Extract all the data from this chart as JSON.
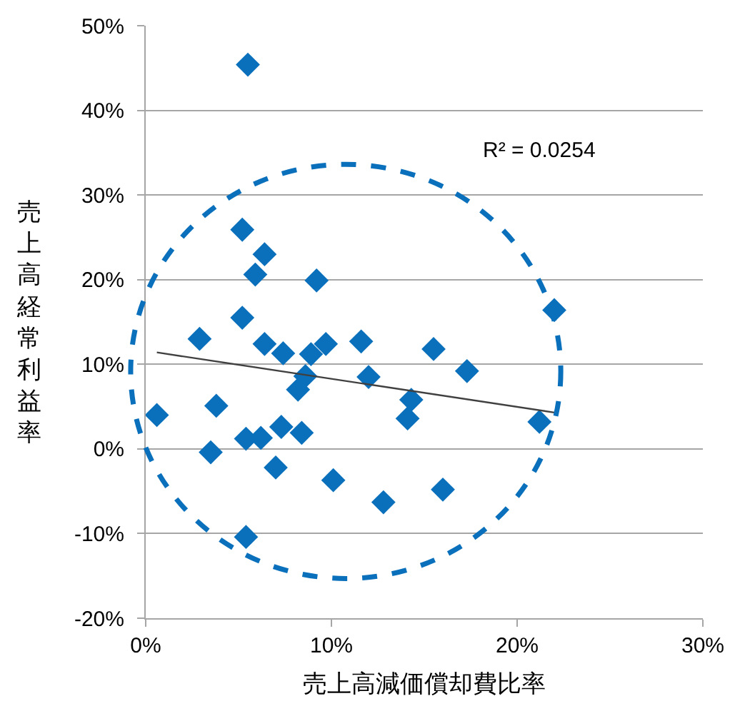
{
  "chart_data": {
    "type": "scatter",
    "xlabel": "売上高減価償却費比率",
    "ylabel": "売上高経常利益率",
    "annotations": [
      "R² = 0.0254"
    ],
    "series": [
      {
        "marker": "diamond",
        "color": "#0a70bc",
        "x": [
          5.5,
          5.2,
          6.4,
          5.9,
          9.2,
          5.2,
          2.9,
          6.4,
          7.4,
          8.9,
          9.7,
          8.6,
          8.2,
          0.6,
          3.8,
          5.4,
          6.2,
          7.3,
          8.4,
          3.5,
          7.0,
          10.1,
          5.4,
          22.0,
          11.6,
          15.5,
          17.3,
          12.0,
          14.3,
          14.1,
          21.2,
          16.0,
          12.8
        ],
        "values": [
          45.4,
          25.9,
          23.0,
          20.6,
          19.9,
          15.5,
          13.0,
          12.4,
          11.3,
          11.2,
          12.4,
          8.6,
          7.0,
          4.0,
          5.1,
          1.2,
          1.3,
          2.6,
          1.9,
          -0.4,
          -2.2,
          -3.7,
          -10.4,
          16.4,
          12.7,
          11.8,
          9.2,
          8.5,
          5.8,
          3.6,
          3.2,
          -4.8,
          -6.3
        ]
      },
      {
        "type": "line",
        "marker": "none",
        "color": "#404040",
        "x": [
          0.6,
          22.0
        ],
        "values": [
          11.4,
          4.3
        ]
      }
    ],
    "xlim": [
      0,
      30
    ],
    "xticks": [
      {
        "value": 0,
        "label": "0%"
      },
      {
        "value": 10,
        "label": "10%"
      },
      {
        "value": 20,
        "label": "20%"
      },
      {
        "value": 30,
        "label": "30%"
      }
    ],
    "ylim": [
      -20,
      50
    ],
    "yticks": [
      {
        "value": -20,
        "label": "-20%"
      },
      {
        "value": -10,
        "label": "-10%"
      },
      {
        "value": 0,
        "label": "0%"
      },
      {
        "value": 10,
        "label": "10%"
      },
      {
        "value": 20,
        "label": "20%"
      },
      {
        "value": 30,
        "label": "30%"
      },
      {
        "value": 40,
        "label": "40%"
      },
      {
        "value": 50,
        "label": "50%"
      }
    ],
    "grid": "y",
    "legend": false
  }
}
